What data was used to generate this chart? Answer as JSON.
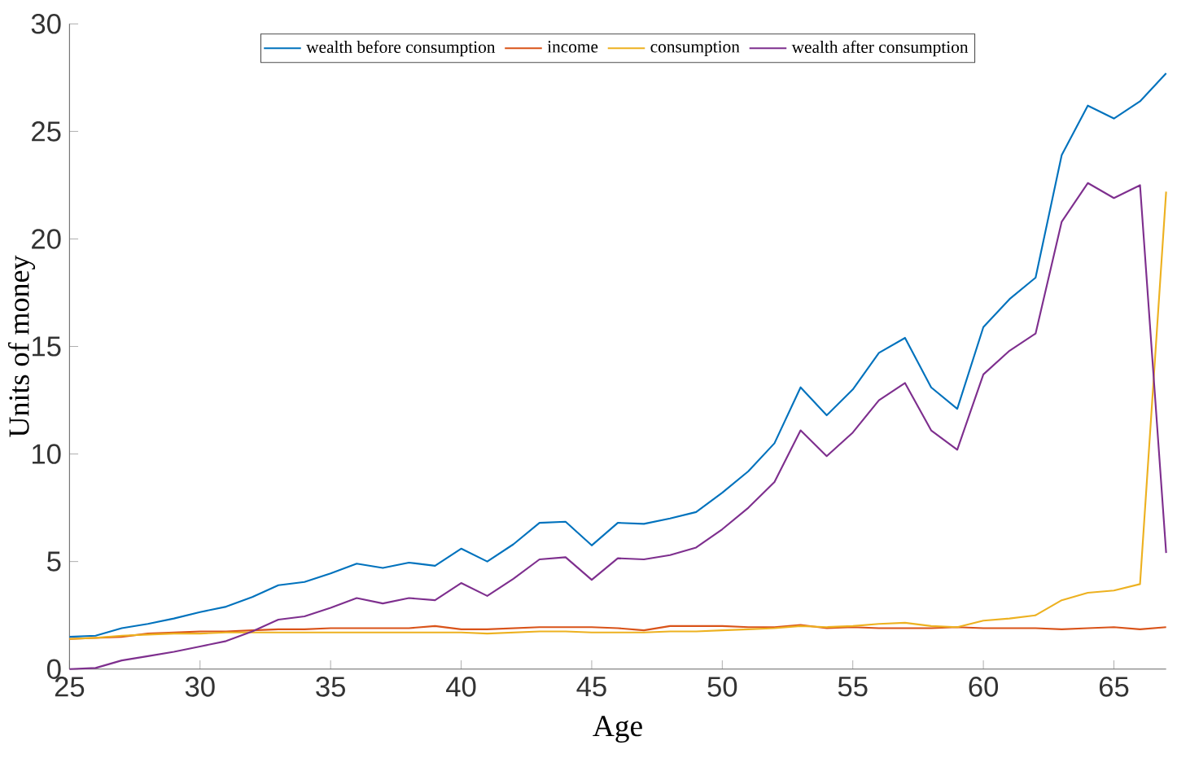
{
  "chart_data": {
    "type": "line",
    "xlabel": "Age",
    "ylabel": "Units of money",
    "x": [
      25,
      26,
      27,
      28,
      29,
      30,
      31,
      32,
      33,
      34,
      35,
      36,
      37,
      38,
      39,
      40,
      41,
      42,
      43,
      44,
      45,
      46,
      47,
      48,
      49,
      50,
      51,
      52,
      53,
      54,
      55,
      56,
      57,
      58,
      59,
      60,
      61,
      62,
      63,
      64,
      65,
      66,
      67
    ],
    "series": [
      {
        "name": "wealth before consumption",
        "color": "#0072bd",
        "values": [
          1.5,
          1.55,
          1.9,
          2.1,
          2.35,
          2.65,
          2.9,
          3.35,
          3.9,
          4.05,
          4.45,
          4.9,
          4.7,
          4.95,
          4.8,
          5.6,
          5.0,
          5.8,
          6.8,
          6.85,
          5.75,
          6.8,
          6.75,
          7.0,
          7.3,
          8.2,
          9.2,
          10.5,
          13.1,
          11.8,
          13.0,
          14.7,
          15.4,
          13.1,
          12.1,
          15.9,
          17.2,
          18.2,
          23.9,
          26.2,
          25.6,
          26.4,
          27.7
        ]
      },
      {
        "name": "income",
        "color": "#d95319",
        "values": [
          1.4,
          1.45,
          1.5,
          1.65,
          1.7,
          1.75,
          1.75,
          1.8,
          1.85,
          1.85,
          1.9,
          1.9,
          1.9,
          1.9,
          2.0,
          1.85,
          1.85,
          1.9,
          1.95,
          1.95,
          1.95,
          1.9,
          1.8,
          2.0,
          2.0,
          2.0,
          1.95,
          1.95,
          2.05,
          1.9,
          1.95,
          1.9,
          1.9,
          1.9,
          1.95,
          1.9,
          1.9,
          1.9,
          1.85,
          1.9,
          1.95,
          1.85,
          1.95
        ]
      },
      {
        "name": "consumption",
        "color": "#edb120",
        "values": [
          1.4,
          1.45,
          1.55,
          1.6,
          1.65,
          1.65,
          1.7,
          1.7,
          1.7,
          1.7,
          1.7,
          1.7,
          1.7,
          1.7,
          1.7,
          1.7,
          1.65,
          1.7,
          1.75,
          1.75,
          1.7,
          1.7,
          1.7,
          1.75,
          1.75,
          1.8,
          1.85,
          1.9,
          2.0,
          1.95,
          2.0,
          2.1,
          2.15,
          2.0,
          1.95,
          2.25,
          2.35,
          2.5,
          3.2,
          3.55,
          3.65,
          3.95,
          22.2
        ]
      },
      {
        "name": "wealth after consumption",
        "color": "#7e2f8e",
        "values": [
          0,
          0.05,
          0.4,
          0.6,
          0.8,
          1.05,
          1.3,
          1.75,
          2.3,
          2.45,
          2.85,
          3.3,
          3.05,
          3.3,
          3.2,
          4.0,
          3.4,
          4.2,
          5.1,
          5.2,
          4.15,
          5.15,
          5.1,
          5.3,
          5.65,
          6.5,
          7.5,
          8.7,
          11.1,
          9.9,
          11.0,
          12.5,
          13.3,
          11.1,
          10.2,
          13.7,
          14.8,
          15.6,
          20.8,
          22.6,
          21.9,
          22.5,
          5.4
        ]
      }
    ],
    "xlim": [
      25,
      67
    ],
    "ylim": [
      0,
      30
    ],
    "xticks": [
      25,
      30,
      35,
      40,
      45,
      50,
      55,
      60,
      65
    ],
    "yticks": [
      0,
      5,
      10,
      15,
      20,
      25,
      30
    ],
    "legend": "top",
    "grid": false,
    "marker": "none",
    "line_style": "solid"
  }
}
